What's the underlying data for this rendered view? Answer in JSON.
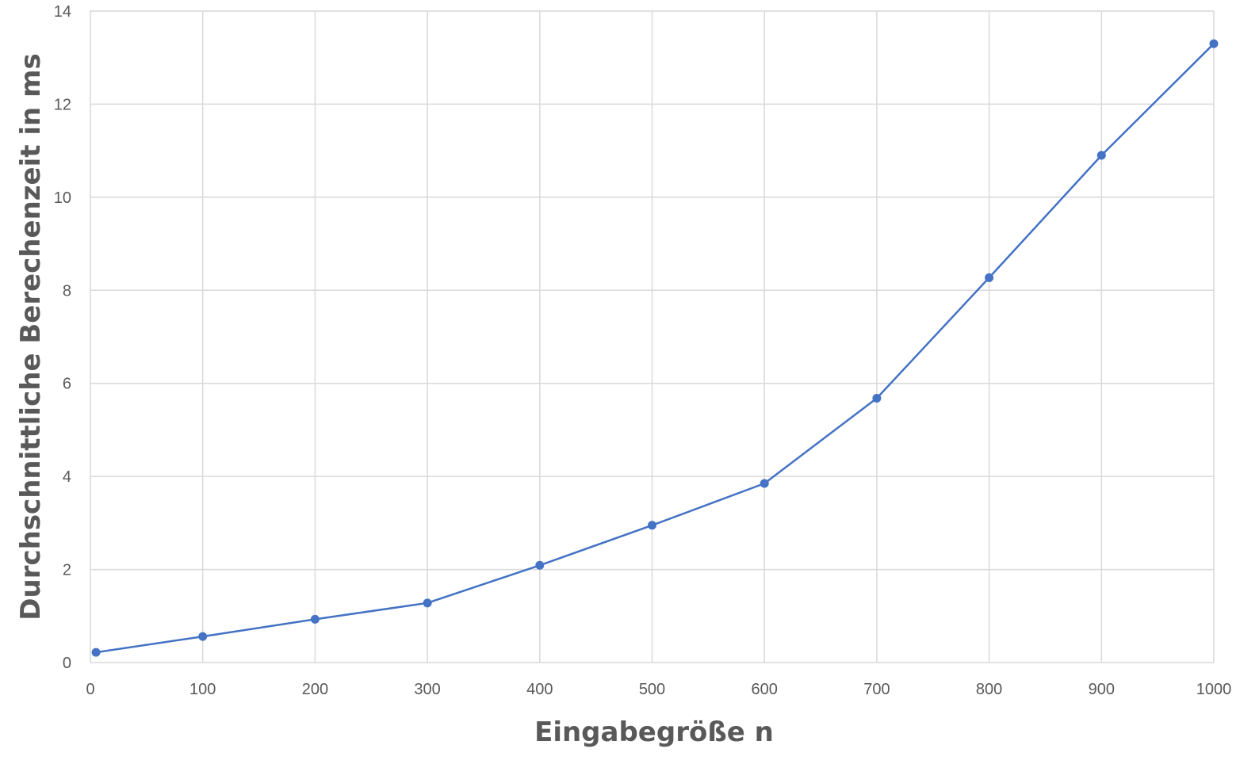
{
  "chart_data": {
    "type": "scatter",
    "title": "",
    "xlabel": "Eingabegröße n",
    "ylabel": "Durchschnittliche Berechenzeit in ms",
    "xlim": [
      0,
      1000
    ],
    "ylim": [
      0,
      14
    ],
    "x_ticks": [
      "0",
      "100",
      "200",
      "300",
      "400",
      "500",
      "600",
      "700",
      "800",
      "900",
      "1000"
    ],
    "y_ticks": [
      "0",
      "2",
      "4",
      "6",
      "8",
      "10",
      "12",
      "14"
    ],
    "grid": true,
    "legend": "none",
    "series": [
      {
        "color": "#4472c4",
        "marker": "circle",
        "line": "straight",
        "points": [
          {
            "x": 5,
            "y": 0.22
          },
          {
            "x": 100,
            "y": 0.56
          },
          {
            "x": 200,
            "y": 0.93
          },
          {
            "x": 300,
            "y": 1.28
          },
          {
            "x": 400,
            "y": 2.09
          },
          {
            "x": 500,
            "y": 2.95
          },
          {
            "x": 600,
            "y": 3.85
          },
          {
            "x": 700,
            "y": 5.68
          },
          {
            "x": 800,
            "y": 8.27
          },
          {
            "x": 900,
            "y": 10.9
          },
          {
            "x": 1000,
            "y": 13.3
          }
        ]
      }
    ]
  }
}
